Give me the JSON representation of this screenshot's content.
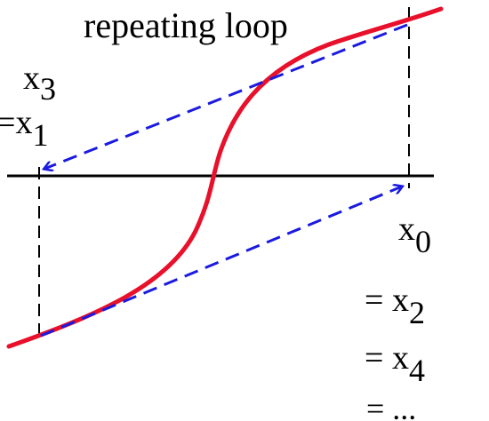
{
  "diagram": {
    "title": "repeating loop",
    "labels": {
      "x3_left": {
        "base": "x",
        "sub": "3"
      },
      "x1_left": {
        "prefix": "=",
        "base": "x",
        "sub": "1"
      },
      "x0_right": {
        "base": "x",
        "sub": "0"
      },
      "x2_right": {
        "prefix": "= ",
        "base": "x",
        "sub": "2"
      },
      "x4_right": {
        "prefix": "= ",
        "base": "x",
        "sub": "4"
      },
      "ellipsis_right": "= ..."
    },
    "colors": {
      "curve": "#e8102a",
      "arrows": "#1a1ae0",
      "axis": "#000000",
      "guides": "#000000"
    }
  }
}
